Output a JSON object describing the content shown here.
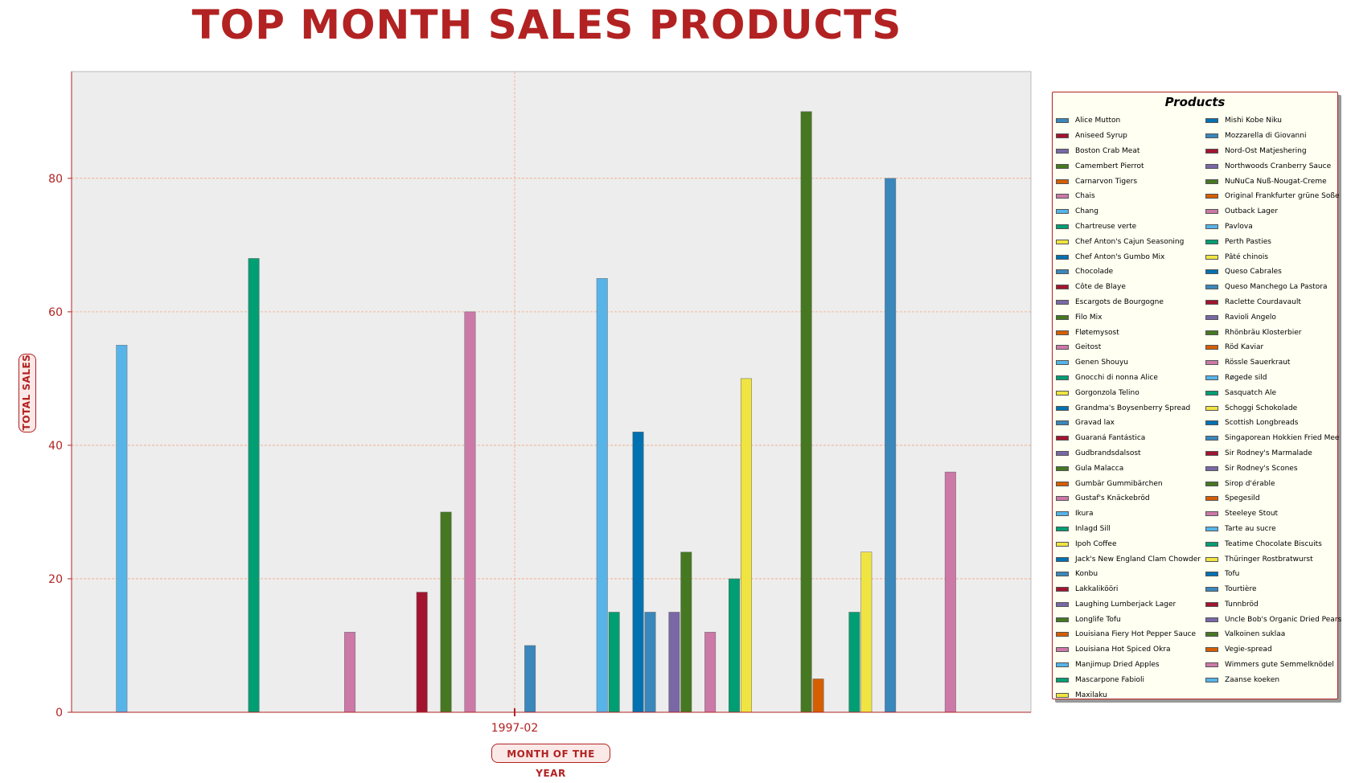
{
  "chart_data": {
    "type": "bar",
    "title": "TOP MONTH SALES PRODUCTS",
    "xlabel": "MONTH OF THE YEAR",
    "ylabel": "TOTAL SALES",
    "categories": [
      "1997-02"
    ],
    "ylim": [
      0,
      96
    ],
    "yticks": [
      0,
      20,
      40,
      60,
      80
    ],
    "grid": true,
    "legend_title": "Products",
    "legend_placement": "right",
    "series": [
      {
        "name": "Alice Mutton",
        "color": "#3a87bc",
        "values": [
          0
        ]
      },
      {
        "name": "Aniseed Syrup",
        "color": "#a2152f",
        "values": [
          0
        ]
      },
      {
        "name": "Boston Crab Meat",
        "color": "#7a68a6",
        "values": [
          0
        ]
      },
      {
        "name": "Camembert Pierrot",
        "color": "#467821",
        "values": [
          0
        ]
      },
      {
        "name": "Carnarvon Tigers",
        "color": "#d55e00",
        "values": [
          0
        ]
      },
      {
        "name": "Chais",
        "color": "#cc79a7",
        "values": [
          0
        ]
      },
      {
        "name": "Chang",
        "color": "#56b4e9",
        "values": [
          55
        ]
      },
      {
        "name": "Chartreuse verte",
        "color": "#009e73",
        "values": [
          0
        ]
      },
      {
        "name": "Chef Anton's Cajun Seasoning",
        "color": "#f0e442",
        "values": [
          0
        ]
      },
      {
        "name": "Chef Anton's Gumbo Mix",
        "color": "#0072b2",
        "values": [
          0
        ]
      },
      {
        "name": "Chocolade",
        "color": "#3a87bc",
        "values": [
          0
        ]
      },
      {
        "name": "Côte de Blaye",
        "color": "#a2152f",
        "values": [
          0
        ]
      },
      {
        "name": "Escargots de Bourgogne",
        "color": "#7a68a6",
        "values": [
          0
        ]
      },
      {
        "name": "Filo Mix",
        "color": "#467821",
        "values": [
          0
        ]
      },
      {
        "name": "Fløtemysost",
        "color": "#d55e00",
        "values": [
          0
        ]
      },
      {
        "name": "Geitost",
        "color": "#cc79a7",
        "values": [
          0
        ]
      },
      {
        "name": "Genen Shouyu",
        "color": "#56b4e9",
        "values": [
          0
        ]
      },
      {
        "name": "Gnocchi di nonna Alice",
        "color": "#009e73",
        "values": [
          68
        ]
      },
      {
        "name": "Gorgonzola Telino",
        "color": "#f0e442",
        "values": [
          0
        ]
      },
      {
        "name": "Grandma's Boysenberry Spread",
        "color": "#0072b2",
        "values": [
          0
        ]
      },
      {
        "name": "Gravad lax",
        "color": "#3a87bc",
        "values": [
          0
        ]
      },
      {
        "name": "Guaraná Fantástica",
        "color": "#a2152f",
        "values": [
          0
        ]
      },
      {
        "name": "Gudbrandsdalsost",
        "color": "#7a68a6",
        "values": [
          0
        ]
      },
      {
        "name": "Gula Malacca",
        "color": "#467821",
        "values": [
          0
        ]
      },
      {
        "name": "Gumbär Gummibärchen",
        "color": "#d55e00",
        "values": [
          0
        ]
      },
      {
        "name": "Gustaf's Knäckebröd",
        "color": "#cc79a7",
        "values": [
          12
        ]
      },
      {
        "name": "Ikura",
        "color": "#56b4e9",
        "values": [
          0
        ]
      },
      {
        "name": "Inlagd Sill",
        "color": "#009e73",
        "values": [
          0
        ]
      },
      {
        "name": "Ipoh Coffee",
        "color": "#f0e442",
        "values": [
          0
        ]
      },
      {
        "name": "Jack's New England Clam Chowder",
        "color": "#0072b2",
        "values": [
          0
        ]
      },
      {
        "name": "Konbu",
        "color": "#3a87bc",
        "values": [
          0
        ]
      },
      {
        "name": "Lakkalikööri",
        "color": "#a2152f",
        "values": [
          18
        ]
      },
      {
        "name": "Laughing Lumberjack Lager",
        "color": "#7a68a6",
        "values": [
          0
        ]
      },
      {
        "name": "Longlife Tofu",
        "color": "#467821",
        "values": [
          30
        ]
      },
      {
        "name": "Louisiana Fiery Hot Pepper Sauce",
        "color": "#d55e00",
        "values": [
          0
        ]
      },
      {
        "name": "Louisiana Hot Spiced Okra",
        "color": "#cc79a7",
        "values": [
          60
        ]
      },
      {
        "name": "Manjimup Dried Apples",
        "color": "#56b4e9",
        "values": [
          0
        ]
      },
      {
        "name": "Mascarpone Fabioli",
        "color": "#009e73",
        "values": [
          0
        ]
      },
      {
        "name": "Maxilaku",
        "color": "#f0e442",
        "values": [
          0
        ]
      },
      {
        "name": "Mishi Kobe Niku",
        "color": "#0072b2",
        "values": [
          0
        ]
      },
      {
        "name": "Mozzarella di Giovanni",
        "color": "#3a87bc",
        "values": [
          10
        ]
      },
      {
        "name": "Nord-Ost Matjeshering",
        "color": "#a2152f",
        "values": [
          0
        ]
      },
      {
        "name": "Northwoods Cranberry Sauce",
        "color": "#7a68a6",
        "values": [
          0
        ]
      },
      {
        "name": "NuNuCa Nuß-Nougat-Creme",
        "color": "#467821",
        "values": [
          0
        ]
      },
      {
        "name": "Original Frankfurter grüne Soße",
        "color": "#d55e00",
        "values": [
          0
        ]
      },
      {
        "name": "Outback Lager",
        "color": "#cc79a7",
        "values": [
          0
        ]
      },
      {
        "name": "Pavlova",
        "color": "#56b4e9",
        "values": [
          65
        ]
      },
      {
        "name": "Perth Pasties",
        "color": "#009e73",
        "values": [
          15
        ]
      },
      {
        "name": "Pâté chinois",
        "color": "#f0e442",
        "values": [
          0
        ]
      },
      {
        "name": "Queso Cabrales",
        "color": "#0072b2",
        "values": [
          42
        ]
      },
      {
        "name": "Queso Manchego La Pastora",
        "color": "#3a87bc",
        "values": [
          15
        ]
      },
      {
        "name": "Raclette Courdavault",
        "color": "#a2152f",
        "values": [
          0
        ]
      },
      {
        "name": "Ravioli Angelo",
        "color": "#7a68a6",
        "values": [
          15
        ]
      },
      {
        "name": "Rhönbräu Klosterbier",
        "color": "#467821",
        "values": [
          24
        ]
      },
      {
        "name": "Röd Kaviar",
        "color": "#d55e00",
        "values": [
          0
        ]
      },
      {
        "name": "Rössle Sauerkraut",
        "color": "#cc79a7",
        "values": [
          12
        ]
      },
      {
        "name": "Røgede sild",
        "color": "#56b4e9",
        "values": [
          0
        ]
      },
      {
        "name": "Sasquatch Ale",
        "color": "#009e73",
        "values": [
          20
        ]
      },
      {
        "name": "Schoggi Schokolade",
        "color": "#f0e442",
        "values": [
          50
        ]
      },
      {
        "name": "Scottish Longbreads",
        "color": "#0072b2",
        "values": [
          0
        ]
      },
      {
        "name": "Singaporean Hokkien Fried Mee",
        "color": "#3a87bc",
        "values": [
          0
        ]
      },
      {
        "name": "Sir Rodney's Marmalade",
        "color": "#a2152f",
        "values": [
          0
        ]
      },
      {
        "name": "Sir Rodney's Scones",
        "color": "#7a68a6",
        "values": [
          0
        ]
      },
      {
        "name": "Sirop d'érable",
        "color": "#467821",
        "values": [
          90
        ]
      },
      {
        "name": "Spegesild",
        "color": "#d55e00",
        "values": [
          5
        ]
      },
      {
        "name": "Steeleye Stout",
        "color": "#cc79a7",
        "values": [
          0
        ]
      },
      {
        "name": "Tarte au sucre",
        "color": "#56b4e9",
        "values": [
          0
        ]
      },
      {
        "name": "Teatime Chocolate Biscuits",
        "color": "#009e73",
        "values": [
          15
        ]
      },
      {
        "name": "Thüringer Rostbratwurst",
        "color": "#f0e442",
        "values": [
          24
        ]
      },
      {
        "name": "Tofu",
        "color": "#0072b2",
        "values": [
          0
        ]
      },
      {
        "name": "Tourtière",
        "color": "#3a87bc",
        "values": [
          80
        ]
      },
      {
        "name": "Tunnbröd",
        "color": "#a2152f",
        "values": [
          0
        ]
      },
      {
        "name": "Uncle Bob's Organic Dried Pears",
        "color": "#7a68a6",
        "values": [
          0
        ]
      },
      {
        "name": "Valkoinen suklaa",
        "color": "#467821",
        "values": [
          0
        ]
      },
      {
        "name": "Vegie-spread",
        "color": "#d55e00",
        "values": [
          0
        ]
      },
      {
        "name": "Wimmers gute Semmelknödel",
        "color": "#cc79a7",
        "values": [
          36
        ]
      },
      {
        "name": "Zaanse koeken",
        "color": "#56b4e9",
        "values": [
          0
        ]
      }
    ]
  },
  "colors": {
    "accent": "#b22222",
    "plot_background": "#ededed",
    "grid": "#f4a582",
    "legend_background": "#fffff2"
  }
}
